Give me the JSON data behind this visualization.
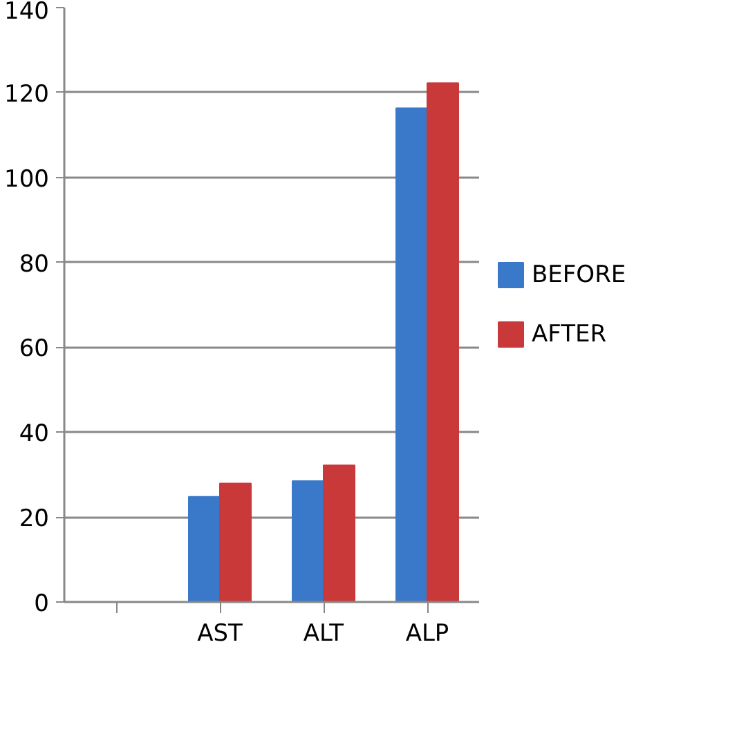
{
  "chart_data": {
    "type": "bar",
    "categories": [
      null,
      "AST",
      "ALT",
      "ALP"
    ],
    "series": [
      {
        "name": "BEFORE",
        "color": "#3a78c9",
        "values": [
          null,
          24.8,
          28.5,
          116.3
        ]
      },
      {
        "name": "AFTER",
        "color": "#c9393a",
        "values": [
          null,
          27.9,
          32.2,
          122.2
        ]
      }
    ],
    "ylim": [
      0,
      140
    ],
    "yticks": [
      0,
      20,
      40,
      60,
      80,
      100,
      120,
      140
    ],
    "grid": "y",
    "legend": "right"
  }
}
